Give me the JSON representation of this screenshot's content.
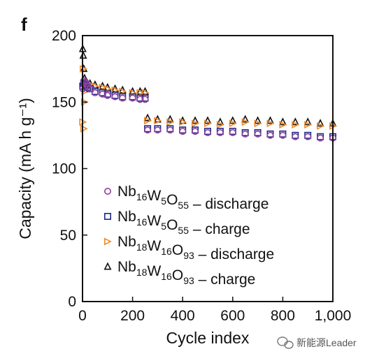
{
  "panel_letter": "f",
  "watermark": {
    "text": "新能源Leader",
    "icon": "wechat-icon"
  },
  "chart_data": {
    "type": "scatter",
    "xlabel": "Cycle index",
    "ylabel": "Capacity (mA h g⁻¹)",
    "xlim": [
      0,
      1000
    ],
    "ylim": [
      0,
      200
    ],
    "x_ticks": [
      0,
      200,
      400,
      600,
      800,
      1000
    ],
    "x_tick_labels": [
      "0",
      "200",
      "400",
      "600",
      "800",
      "1,000"
    ],
    "y_ticks": [
      0,
      50,
      100,
      150,
      200
    ],
    "y_tick_labels": [
      "0",
      "50",
      "100",
      "150",
      "200"
    ],
    "grid": false,
    "legend_placement": "bottom-left",
    "series": [
      {
        "name": "Nb16W5O55 – discharge",
        "label_parts": [
          [
            "Nb",
            ""
          ],
          [
            "16",
            "sub"
          ],
          [
            "W",
            ""
          ],
          [
            "5",
            "sub"
          ],
          [
            "O",
            ""
          ],
          [
            "55",
            "sub"
          ],
          [
            " – discharge",
            ""
          ]
        ],
        "marker": "circle",
        "color": "#8e3f9c",
        "x": [
          1,
          5,
          10,
          15,
          20,
          30,
          50,
          80,
          100,
          130,
          160,
          200,
          230,
          250,
          260,
          300,
          350,
          400,
          450,
          500,
          550,
          600,
          650,
          700,
          750,
          800,
          850,
          900,
          950,
          1000
        ],
        "y": [
          160,
          166,
          165,
          164,
          162,
          160,
          157,
          156,
          155,
          154,
          153,
          153,
          152,
          152,
          129,
          129,
          129,
          128,
          128,
          127,
          127,
          127,
          126,
          126,
          125,
          125,
          124,
          124,
          123,
          123
        ]
      },
      {
        "name": "Nb16W5O55 – charge",
        "label_parts": [
          [
            "Nb",
            ""
          ],
          [
            "16",
            "sub"
          ],
          [
            "W",
            ""
          ],
          [
            "5",
            "sub"
          ],
          [
            "O",
            ""
          ],
          [
            "55",
            "sub"
          ],
          [
            " – charge",
            ""
          ]
        ],
        "marker": "square",
        "color": "#1f2a8a",
        "x": [
          1,
          5,
          10,
          15,
          20,
          30,
          50,
          80,
          100,
          130,
          160,
          200,
          230,
          250,
          260,
          300,
          350,
          400,
          450,
          500,
          550,
          600,
          650,
          700,
          750,
          800,
          850,
          900,
          950,
          1000
        ],
        "y": [
          162,
          164,
          164,
          163,
          161,
          160,
          158,
          157,
          156,
          155,
          154,
          154,
          153,
          153,
          130,
          130,
          130,
          129,
          129,
          128,
          128,
          128,
          127,
          127,
          126,
          126,
          125,
          125,
          124,
          124
        ]
      },
      {
        "name": "Nb18W16O93 – discharge",
        "label_parts": [
          [
            "Nb",
            ""
          ],
          [
            "18",
            "sub"
          ],
          [
            "W",
            ""
          ],
          [
            "16",
            "sub"
          ],
          [
            "O",
            ""
          ],
          [
            "93",
            "sub"
          ],
          [
            " – discharge",
            ""
          ]
        ],
        "marker": "triangle-right",
        "color": "#ef8a2a",
        "x": [
          1,
          3,
          5,
          8,
          10,
          15,
          20,
          30,
          50,
          80,
          100,
          130,
          160,
          200,
          230,
          250,
          260,
          300,
          350,
          400,
          450,
          500,
          550,
          600,
          650,
          700,
          750,
          800,
          850,
          900,
          950,
          1000
        ],
        "y": [
          135,
          175,
          130,
          150,
          158,
          160,
          162,
          163,
          162,
          161,
          160,
          159,
          158,
          157,
          157,
          157,
          136,
          136,
          135,
          135,
          134,
          134,
          133,
          134,
          135,
          134,
          134,
          133,
          133,
          133,
          132,
          132
        ]
      },
      {
        "name": "Nb18W16O93 – charge",
        "label_parts": [
          [
            "Nb",
            ""
          ],
          [
            "18",
            "sub"
          ],
          [
            "W",
            ""
          ],
          [
            "16",
            "sub"
          ],
          [
            "O",
            ""
          ],
          [
            "93",
            "sub"
          ],
          [
            " – charge",
            ""
          ]
        ],
        "marker": "triangle-up",
        "color": "#111111",
        "x": [
          1,
          3,
          5,
          8,
          10,
          15,
          20,
          30,
          50,
          80,
          100,
          130,
          160,
          200,
          230,
          250,
          260,
          300,
          350,
          400,
          450,
          500,
          550,
          600,
          650,
          700,
          750,
          800,
          850,
          900,
          950,
          1000
        ],
        "y": [
          190,
          185,
          175,
          168,
          164,
          163,
          164,
          164,
          163,
          162,
          161,
          160,
          159,
          158,
          158,
          158,
          138,
          137,
          137,
          136,
          136,
          136,
          135,
          136,
          137,
          136,
          136,
          135,
          135,
          135,
          134,
          134
        ]
      }
    ]
  }
}
